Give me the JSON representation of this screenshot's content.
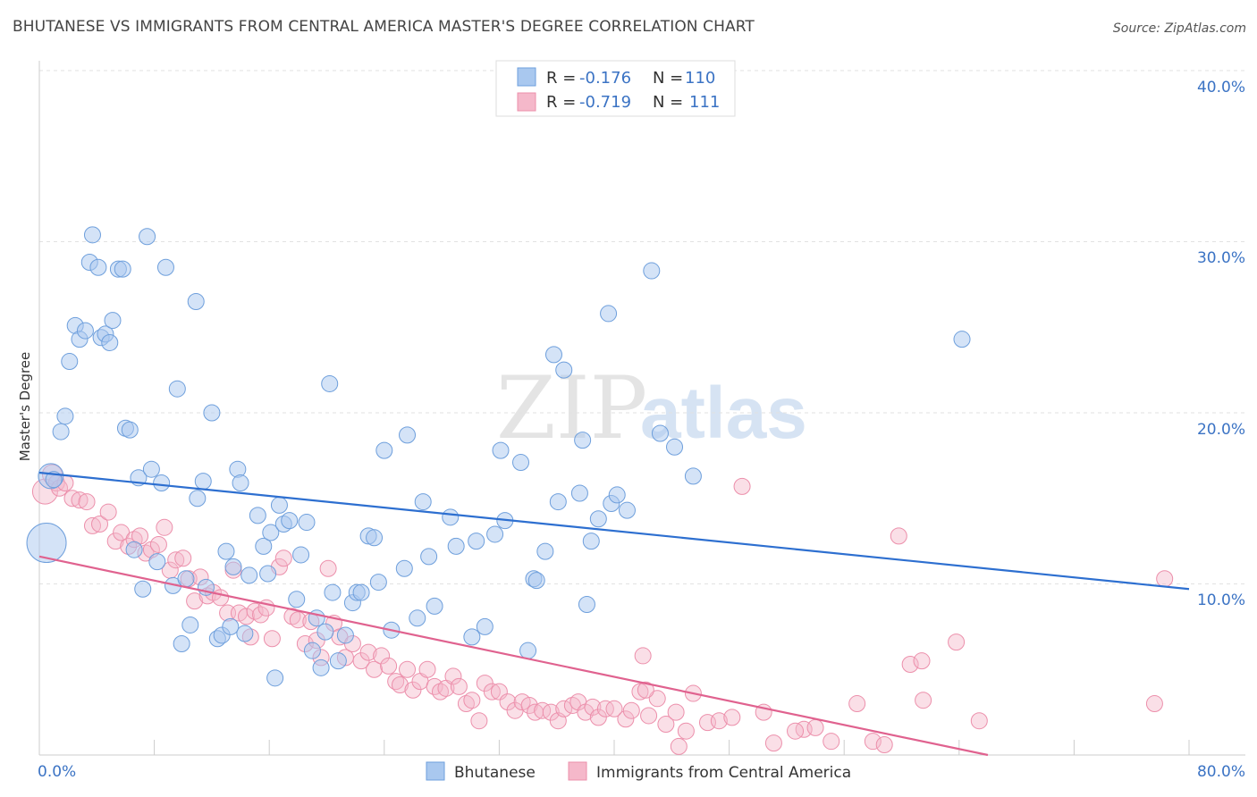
{
  "title": "BHUTANESE VS IMMIGRANTS FROM CENTRAL AMERICA MASTER'S DEGREE CORRELATION CHART",
  "source": "Source: ZipAtlas.com",
  "watermark": {
    "zip": "ZIP",
    "atlas": "atlas"
  },
  "colors": {
    "blue_fill": "#a9c8ef",
    "blue_stroke": "#6e9fdc",
    "blue_line": "#2d6fd0",
    "pink_fill": "#f5b8ca",
    "pink_stroke": "#ec8fab",
    "pink_line": "#e0628f",
    "accent_text": "#3b73c4",
    "grid": "#e2e2e2"
  },
  "legend": {
    "rows": [
      {
        "r_label": "R =",
        "r_value": "-0.176",
        "n_label": "N =",
        "n_value": "110"
      },
      {
        "r_label": "R =",
        "r_value": "-0.719",
        "n_label": "N =",
        "n_value": "111"
      }
    ]
  },
  "chart_data": {
    "type": "scatter",
    "title": "BHUTANESE VS IMMIGRANTS FROM CENTRAL AMERICA MASTER'S DEGREE CORRELATION CHART",
    "xlabel": "",
    "ylabel": "Master's Degree",
    "xlim": [
      0,
      80
    ],
    "ylim": [
      0,
      40
    ],
    "x_tick_labels": [
      "0.0%",
      "80.0%"
    ],
    "y_ticks": [
      10,
      20,
      30,
      40
    ],
    "y_tick_labels": [
      "10.0%",
      "20.0%",
      "30.0%",
      "40.0%"
    ],
    "grid": true,
    "series": [
      {
        "name": "Bhutanese",
        "R": -0.176,
        "N": 110,
        "trend": {
          "x": [
            0,
            80
          ],
          "y": [
            16.5,
            9.7
          ]
        },
        "points": [
          [
            0.5,
            12.4,
            22
          ],
          [
            0.8,
            16.3,
            14
          ],
          [
            1.0,
            16.1,
            9
          ],
          [
            1.5,
            18.9,
            9
          ],
          [
            1.8,
            19.8,
            9
          ],
          [
            2.1,
            23.0,
            9
          ],
          [
            2.5,
            25.1,
            9
          ],
          [
            2.8,
            24.3,
            9
          ],
          [
            3.2,
            24.8,
            9
          ],
          [
            3.5,
            28.8,
            9
          ],
          [
            3.7,
            30.4,
            9
          ],
          [
            4.1,
            28.5,
            9
          ],
          [
            4.3,
            24.4,
            9
          ],
          [
            4.6,
            24.6,
            9
          ],
          [
            4.9,
            24.1,
            9
          ],
          [
            5.1,
            25.4,
            9
          ],
          [
            5.5,
            28.4,
            9
          ],
          [
            5.8,
            28.4,
            9
          ],
          [
            6.0,
            19.1,
            9
          ],
          [
            6.3,
            19.0,
            9
          ],
          [
            6.6,
            12.0,
            9
          ],
          [
            6.9,
            16.2,
            9
          ],
          [
            7.2,
            9.7,
            9
          ],
          [
            7.5,
            30.3,
            9
          ],
          [
            7.8,
            16.7,
            9
          ],
          [
            8.2,
            11.3,
            9
          ],
          [
            8.5,
            15.9,
            9
          ],
          [
            8.8,
            28.5,
            9
          ],
          [
            9.3,
            9.9,
            9
          ],
          [
            9.6,
            21.4,
            9
          ],
          [
            9.9,
            6.5,
            9
          ],
          [
            10.2,
            10.3,
            9
          ],
          [
            10.5,
            7.6,
            9
          ],
          [
            10.9,
            26.5,
            9
          ],
          [
            11.0,
            15.0,
            9
          ],
          [
            11.4,
            16.0,
            9
          ],
          [
            11.6,
            9.8,
            9
          ],
          [
            12.0,
            20.0,
            9
          ],
          [
            12.4,
            6.8,
            9
          ],
          [
            12.7,
            7.0,
            9
          ],
          [
            13.0,
            11.9,
            9
          ],
          [
            13.3,
            7.5,
            9
          ],
          [
            13.5,
            11.0,
            9
          ],
          [
            13.8,
            16.7,
            9
          ],
          [
            14.0,
            15.9,
            9
          ],
          [
            14.3,
            7.1,
            9
          ],
          [
            14.6,
            10.5,
            9
          ],
          [
            15.2,
            14.0,
            9
          ],
          [
            15.6,
            12.2,
            9
          ],
          [
            15.9,
            10.6,
            9
          ],
          [
            16.1,
            13.0,
            9
          ],
          [
            16.4,
            4.5,
            9
          ],
          [
            16.7,
            14.6,
            9
          ],
          [
            17.0,
            13.5,
            9
          ],
          [
            17.4,
            13.7,
            9
          ],
          [
            17.9,
            9.1,
            9
          ],
          [
            18.2,
            11.7,
            9
          ],
          [
            18.6,
            13.6,
            9
          ],
          [
            19.0,
            6.1,
            9
          ],
          [
            19.3,
            8.0,
            9
          ],
          [
            19.6,
            5.1,
            9
          ],
          [
            19.9,
            7.2,
            9
          ],
          [
            20.2,
            21.7,
            9
          ],
          [
            20.4,
            9.5,
            9
          ],
          [
            20.8,
            5.5,
            9
          ],
          [
            21.3,
            7.0,
            9
          ],
          [
            21.8,
            8.9,
            9
          ],
          [
            22.1,
            9.5,
            9
          ],
          [
            22.4,
            9.5,
            9
          ],
          [
            22.9,
            12.8,
            9
          ],
          [
            23.3,
            12.7,
            9
          ],
          [
            23.6,
            10.1,
            9
          ],
          [
            24.0,
            17.8,
            9
          ],
          [
            24.5,
            7.3,
            9
          ],
          [
            25.4,
            10.9,
            9
          ],
          [
            25.6,
            18.7,
            9
          ],
          [
            26.3,
            8.0,
            9
          ],
          [
            26.7,
            14.8,
            9
          ],
          [
            27.1,
            11.6,
            9
          ],
          [
            27.5,
            8.7,
            9
          ],
          [
            28.6,
            13.9,
            9
          ],
          [
            29.0,
            12.2,
            9
          ],
          [
            30.1,
            6.9,
            9
          ],
          [
            30.4,
            12.5,
            9
          ],
          [
            31.0,
            7.5,
            9
          ],
          [
            31.7,
            12.9,
            9
          ],
          [
            32.1,
            17.8,
            9
          ],
          [
            32.4,
            13.7,
            9
          ],
          [
            33.5,
            17.1,
            9
          ],
          [
            34.0,
            6.1,
            9
          ],
          [
            34.4,
            10.3,
            9
          ],
          [
            34.6,
            10.2,
            9
          ],
          [
            35.2,
            11.9,
            9
          ],
          [
            35.8,
            23.4,
            9
          ],
          [
            36.1,
            14.8,
            9
          ],
          [
            36.5,
            22.5,
            9
          ],
          [
            37.6,
            15.3,
            9
          ],
          [
            37.8,
            18.4,
            9
          ],
          [
            38.1,
            8.8,
            9
          ],
          [
            38.4,
            12.5,
            9
          ],
          [
            38.9,
            13.8,
            9
          ],
          [
            39.6,
            25.8,
            9
          ],
          [
            39.8,
            14.7,
            9
          ],
          [
            40.2,
            15.2,
            9
          ],
          [
            40.9,
            14.3,
            9
          ],
          [
            43.2,
            18.8,
            9
          ],
          [
            44.2,
            18.0,
            9
          ],
          [
            45.5,
            16.3,
            9
          ],
          [
            42.6,
            28.3,
            9
          ],
          [
            64.2,
            24.3,
            9
          ]
        ]
      },
      {
        "name": "Immigrants from Central America",
        "R": -0.719,
        "N": 111,
        "trend": {
          "x": [
            0,
            66
          ],
          "y": [
            11.6,
            0.0
          ]
        },
        "points": [
          [
            0.4,
            15.4,
            14
          ],
          [
            0.9,
            16.4,
            11
          ],
          [
            1.2,
            15.9,
            9
          ],
          [
            1.4,
            15.6,
            9
          ],
          [
            1.8,
            15.9,
            9
          ],
          [
            2.3,
            15.0,
            9
          ],
          [
            2.8,
            14.9,
            9
          ],
          [
            3.3,
            14.8,
            9
          ],
          [
            3.7,
            13.4,
            9
          ],
          [
            4.2,
            13.5,
            9
          ],
          [
            4.8,
            14.2,
            9
          ],
          [
            5.3,
            12.5,
            9
          ],
          [
            5.7,
            13.0,
            9
          ],
          [
            6.2,
            12.2,
            9
          ],
          [
            6.6,
            12.6,
            9
          ],
          [
            7.0,
            12.8,
            9
          ],
          [
            7.4,
            11.8,
            9
          ],
          [
            7.8,
            12.0,
            9
          ],
          [
            8.3,
            12.3,
            9
          ],
          [
            8.7,
            13.3,
            9
          ],
          [
            9.1,
            10.8,
            9
          ],
          [
            9.5,
            11.4,
            9
          ],
          [
            10.0,
            11.5,
            9
          ],
          [
            10.4,
            10.3,
            9
          ],
          [
            10.8,
            9.0,
            9
          ],
          [
            11.2,
            10.4,
            9
          ],
          [
            11.7,
            9.3,
            9
          ],
          [
            12.1,
            9.5,
            9
          ],
          [
            12.6,
            9.2,
            9
          ],
          [
            13.1,
            8.3,
            9
          ],
          [
            13.5,
            10.8,
            9
          ],
          [
            13.9,
            8.3,
            9
          ],
          [
            14.4,
            8.1,
            9
          ],
          [
            14.7,
            6.9,
            9
          ],
          [
            15.0,
            8.4,
            9
          ],
          [
            15.4,
            8.2,
            9
          ],
          [
            15.8,
            8.6,
            9
          ],
          [
            16.2,
            6.8,
            9
          ],
          [
            16.7,
            11.0,
            9
          ],
          [
            17.0,
            11.5,
            9
          ],
          [
            17.6,
            8.1,
            9
          ],
          [
            18.0,
            7.9,
            9
          ],
          [
            18.5,
            6.5,
            9
          ],
          [
            18.9,
            7.8,
            9
          ],
          [
            19.3,
            6.7,
            9
          ],
          [
            19.6,
            5.7,
            9
          ],
          [
            20.1,
            10.9,
            9
          ],
          [
            20.5,
            7.7,
            9
          ],
          [
            20.9,
            6.9,
            9
          ],
          [
            21.3,
            5.7,
            9
          ],
          [
            21.8,
            6.5,
            9
          ],
          [
            22.4,
            5.5,
            9
          ],
          [
            22.9,
            6.0,
            9
          ],
          [
            23.3,
            5.0,
            9
          ],
          [
            23.8,
            5.8,
            9
          ],
          [
            24.3,
            5.2,
            9
          ],
          [
            24.8,
            4.3,
            9
          ],
          [
            25.1,
            4.1,
            9
          ],
          [
            25.6,
            5.0,
            9
          ],
          [
            26.0,
            3.8,
            9
          ],
          [
            26.5,
            4.3,
            9
          ],
          [
            27.0,
            5.0,
            9
          ],
          [
            27.5,
            4.0,
            9
          ],
          [
            27.9,
            3.7,
            9
          ],
          [
            28.3,
            3.9,
            9
          ],
          [
            28.8,
            4.6,
            9
          ],
          [
            29.2,
            4.0,
            9
          ],
          [
            29.7,
            3.0,
            9
          ],
          [
            30.1,
            3.2,
            9
          ],
          [
            30.6,
            2.0,
            9
          ],
          [
            31.0,
            4.2,
            9
          ],
          [
            31.5,
            3.7,
            9
          ],
          [
            32.0,
            3.7,
            9
          ],
          [
            32.6,
            3.1,
            9
          ],
          [
            33.1,
            2.6,
            9
          ],
          [
            33.6,
            3.1,
            9
          ],
          [
            34.1,
            2.9,
            9
          ],
          [
            34.5,
            2.5,
            9
          ],
          [
            35.0,
            2.6,
            9
          ],
          [
            35.6,
            2.5,
            9
          ],
          [
            36.1,
            2.0,
            9
          ],
          [
            36.5,
            2.7,
            9
          ],
          [
            37.1,
            2.9,
            9
          ],
          [
            37.5,
            3.1,
            9
          ],
          [
            38.0,
            2.5,
            9
          ],
          [
            38.5,
            2.8,
            9
          ],
          [
            38.9,
            2.2,
            9
          ],
          [
            39.4,
            2.7,
            9
          ],
          [
            40.0,
            2.7,
            9
          ],
          [
            40.8,
            2.1,
            9
          ],
          [
            41.2,
            2.6,
            9
          ],
          [
            41.8,
            3.7,
            9
          ],
          [
            42.4,
            2.3,
            9
          ],
          [
            43.0,
            3.3,
            9
          ],
          [
            43.6,
            1.8,
            9
          ],
          [
            44.3,
            2.5,
            9
          ],
          [
            45.0,
            1.4,
            9
          ],
          [
            45.5,
            3.6,
            9
          ],
          [
            46.5,
            1.9,
            9
          ],
          [
            47.3,
            2.0,
            9
          ],
          [
            48.2,
            2.2,
            9
          ],
          [
            48.9,
            15.7,
            9
          ],
          [
            50.4,
            2.5,
            9
          ],
          [
            51.1,
            0.7,
            9
          ],
          [
            53.2,
            1.5,
            9
          ],
          [
            54.0,
            1.6,
            9
          ],
          [
            55.1,
            0.8,
            9
          ],
          [
            56.9,
            3.0,
            9
          ],
          [
            58.0,
            0.8,
            9
          ],
          [
            61.5,
            3.2,
            9
          ],
          [
            65.4,
            2.0,
            9
          ]
        ]
      }
    ],
    "extra_points_pink": [
      [
        42.0,
        5.8,
        9
      ],
      [
        42.2,
        3.8,
        9
      ],
      [
        44.5,
        0.5,
        9
      ],
      [
        52.6,
        1.4,
        9
      ],
      [
        58.8,
        0.6,
        9
      ],
      [
        59.8,
        12.8,
        9
      ],
      [
        60.6,
        5.3,
        9
      ],
      [
        61.4,
        5.5,
        9
      ],
      [
        63.8,
        6.6,
        9
      ],
      [
        77.6,
        3.0,
        9
      ],
      [
        78.3,
        10.3,
        9
      ]
    ]
  },
  "bottom_legend": [
    {
      "label": "Bhutanese"
    },
    {
      "label": "Immigrants from Central America"
    }
  ]
}
